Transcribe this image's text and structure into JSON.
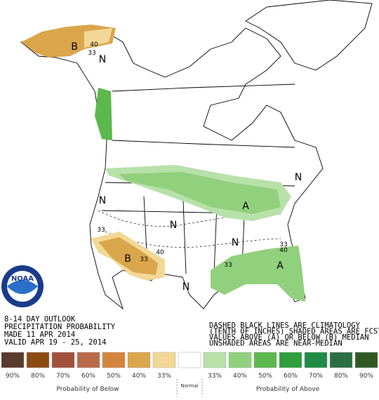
{
  "outlook": {
    "lines": [
      "8-14 DAY OUTLOOK",
      "PRECIPITATION PROBABILITY",
      "MADE  11 APR 2014",
      "VALID  APR 19 - 25, 2014"
    ]
  },
  "notes": [
    "DASHED BLACK LINES ARE CLIMATOLOGY",
    "(TENTH OF INCHES) SHADED AREAS ARE FCST",
    "VALUES ABOVE (A) OR BELOW (B) MEDIAN",
    "UNSHADED AREAS ARE NEAR-MEDIAN"
  ],
  "logo": "NOAA",
  "map_labels": [
    "B",
    "40",
    "33",
    "N",
    "N",
    "N",
    "N",
    "N",
    "N",
    "A",
    "A",
    "B",
    "33",
    "40",
    "33",
    "33",
    "40",
    "33"
  ],
  "legend": {
    "swatches": [
      {
        "color": "#5a3a2c",
        "label": "90%"
      },
      {
        "color": "#8c4a10",
        "label": "80%"
      },
      {
        "color": "#a2503c",
        "label": "70%"
      },
      {
        "color": "#ba6a4a",
        "label": "60%"
      },
      {
        "color": "#d4843e",
        "label": "50%"
      },
      {
        "color": "#daa64c",
        "label": "40%"
      },
      {
        "color": "#f2d896",
        "label": "33%"
      },
      {
        "color": "#ffffff",
        "label": "Normal"
      },
      {
        "color": "#b8e1aa",
        "label": "33%"
      },
      {
        "color": "#91d07c",
        "label": "40%"
      },
      {
        "color": "#5cb84c",
        "label": "50%"
      },
      {
        "color": "#2f9e3c",
        "label": "60%"
      },
      {
        "color": "#1f8a46",
        "label": "70%"
      },
      {
        "color": "#2b6e46",
        "label": "80%"
      },
      {
        "color": "#2f5a22",
        "label": "90%"
      }
    ],
    "below": "Probability of Below",
    "above": "Probability of Above"
  }
}
